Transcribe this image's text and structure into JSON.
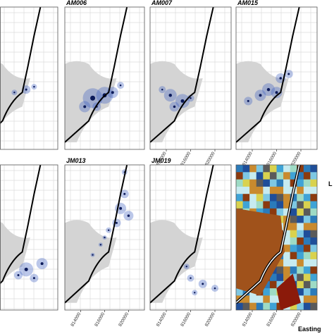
{
  "panels": [
    {
      "title": null
    },
    {
      "title": "AM006"
    },
    {
      "title": "AM007"
    },
    {
      "title": "AM015"
    },
    {
      "title": null
    },
    {
      "title": "JM013"
    },
    {
      "title": "JM019"
    },
    {
      "title": null
    }
  ],
  "x_ticks": [
    "814000",
    "816000",
    "820000"
  ],
  "x_axis_label": "Easting",
  "legend_title": "L"
}
